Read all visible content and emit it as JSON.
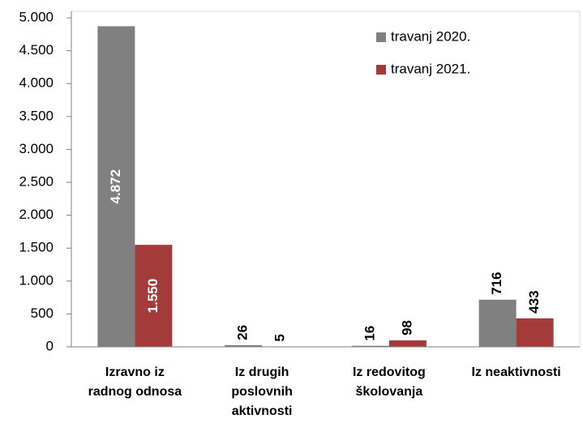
{
  "chart_data": {
    "type": "bar",
    "categories": [
      [
        "Izravno iz",
        "radnog odnosa"
      ],
      [
        "Iz drugih",
        "poslovnih",
        "aktivnosti"
      ],
      [
        "Iz redovitog",
        "školovanja"
      ],
      [
        "Iz neaktivnosti"
      ]
    ],
    "series": [
      {
        "name": "travanj 2020.",
        "color": "#808080",
        "values": [
          4872,
          26,
          16,
          716
        ],
        "value_labels": [
          "4.872",
          "26",
          "16",
          "716"
        ]
      },
      {
        "name": "travanj 2021.",
        "color": "#a33b3b",
        "values": [
          1550,
          5,
          98,
          433
        ],
        "value_labels": [
          "1.550",
          "5",
          "98",
          "433"
        ]
      }
    ],
    "ylim": [
      0,
      5000
    ],
    "yticks": [
      0,
      500,
      {
        "value": 1000,
        "label": "1.000"
      },
      {
        "value": 1500,
        "label": "1.500"
      },
      {
        "value": 2000,
        "label": "2.000"
      },
      {
        "value": 2500,
        "label": "2.500"
      },
      {
        "value": 3000,
        "label": "3.000"
      },
      {
        "value": 3500,
        "label": "3.500"
      },
      {
        "value": 4000,
        "label": "4.000"
      },
      {
        "value": 4500,
        "label": "4.500"
      },
      {
        "value": 5000,
        "label": "5.000"
      }
    ],
    "grid": false,
    "legend": "upper right"
  }
}
